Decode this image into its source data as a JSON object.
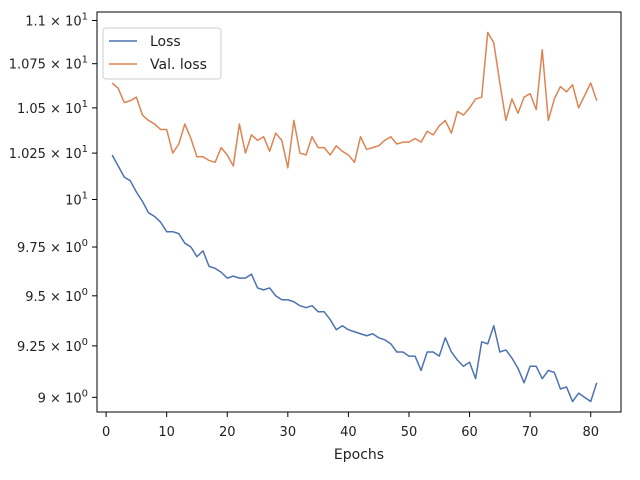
{
  "chart_data": {
    "type": "line",
    "title": "",
    "xlabel": "Epochs",
    "ylabel": "",
    "xlim": [
      -1.5,
      85
    ],
    "ylim": [
      8.93,
      11.05
    ],
    "log_scale_y": true,
    "grid": false,
    "legend_position": "top-left",
    "x_ticks": [
      0,
      10,
      20,
      30,
      40,
      50,
      60,
      70,
      80
    ],
    "x_tick_labels": [
      "0",
      "10",
      "20",
      "30",
      "40",
      "50",
      "60",
      "70",
      "80"
    ],
    "y_ticks": [
      {
        "value": 9.0,
        "base": "9 × 10",
        "exp": "0"
      },
      {
        "value": 9.25,
        "base": "9.25 × 10",
        "exp": "0"
      },
      {
        "value": 9.5,
        "base": "9.5 × 10",
        "exp": "0"
      },
      {
        "value": 9.75,
        "base": "9.75 × 10",
        "exp": "0"
      },
      {
        "value": 10.0,
        "base": "10",
        "exp": "1"
      },
      {
        "value": 10.25,
        "base": "1.025 × 10",
        "exp": "1"
      },
      {
        "value": 10.5,
        "base": "1.05 × 10",
        "exp": "1"
      },
      {
        "value": 10.75,
        "base": "1.075 × 10",
        "exp": "1"
      },
      {
        "value": 11.0,
        "base": "1.1 × 10",
        "exp": "1"
      }
    ],
    "x": [
      1,
      2,
      3,
      4,
      5,
      6,
      7,
      8,
      9,
      10,
      11,
      12,
      13,
      14,
      15,
      16,
      17,
      18,
      19,
      20,
      21,
      22,
      23,
      24,
      25,
      26,
      27,
      28,
      29,
      30,
      31,
      32,
      33,
      34,
      35,
      36,
      37,
      38,
      39,
      40,
      41,
      42,
      43,
      44,
      45,
      46,
      47,
      48,
      49,
      50,
      51,
      52,
      53,
      54,
      55,
      56,
      57,
      58,
      59,
      60,
      61,
      62,
      63,
      64,
      65,
      66,
      67,
      68,
      69,
      70,
      71,
      72,
      73,
      74,
      75,
      76,
      77,
      78,
      79,
      80,
      81
    ],
    "series": [
      {
        "name": "Loss",
        "color": "#4c72b0",
        "values": [
          10.24,
          10.18,
          10.12,
          10.1,
          10.04,
          9.99,
          9.93,
          9.91,
          9.88,
          9.83,
          9.83,
          9.82,
          9.77,
          9.75,
          9.7,
          9.73,
          9.65,
          9.64,
          9.62,
          9.59,
          9.6,
          9.59,
          9.59,
          9.61,
          9.54,
          9.53,
          9.54,
          9.5,
          9.48,
          9.48,
          9.47,
          9.45,
          9.44,
          9.45,
          9.42,
          9.42,
          9.38,
          9.33,
          9.35,
          9.33,
          9.32,
          9.31,
          9.3,
          9.31,
          9.29,
          9.28,
          9.26,
          9.22,
          9.22,
          9.2,
          9.2,
          9.13,
          9.22,
          9.22,
          9.2,
          9.29,
          9.22,
          9.18,
          9.15,
          9.17,
          9.09,
          9.27,
          9.26,
          9.35,
          9.22,
          9.23,
          9.19,
          9.14,
          9.07,
          9.15,
          9.15,
          9.09,
          9.13,
          9.12,
          9.04,
          9.05,
          8.98,
          9.02,
          9.0,
          8.98,
          9.07
        ]
      },
      {
        "name": "Val. loss",
        "color": "#dd8452",
        "values": [
          10.64,
          10.61,
          10.53,
          10.54,
          10.56,
          10.46,
          10.43,
          10.41,
          10.38,
          10.38,
          10.25,
          10.3,
          10.41,
          10.33,
          10.23,
          10.23,
          10.21,
          10.2,
          10.28,
          10.24,
          10.18,
          10.41,
          10.25,
          10.35,
          10.32,
          10.34,
          10.26,
          10.36,
          10.32,
          10.17,
          10.43,
          10.25,
          10.24,
          10.34,
          10.28,
          10.28,
          10.24,
          10.29,
          10.26,
          10.24,
          10.2,
          10.34,
          10.27,
          10.28,
          10.29,
          10.32,
          10.34,
          10.3,
          10.31,
          10.31,
          10.33,
          10.31,
          10.37,
          10.35,
          10.4,
          10.43,
          10.36,
          10.48,
          10.46,
          10.5,
          10.55,
          10.56,
          10.93,
          10.87,
          10.64,
          10.43,
          10.55,
          10.47,
          10.56,
          10.58,
          10.49,
          10.83,
          10.43,
          10.55,
          10.62,
          10.59,
          10.63,
          10.5,
          10.57,
          10.64,
          10.54
        ]
      }
    ]
  }
}
